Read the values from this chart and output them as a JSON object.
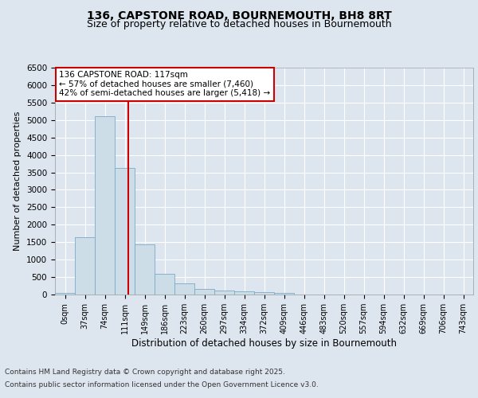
{
  "title": "136, CAPSTONE ROAD, BOURNEMOUTH, BH8 8RT",
  "subtitle": "Size of property relative to detached houses in Bournemouth",
  "xlabel": "Distribution of detached houses by size in Bournemouth",
  "ylabel": "Number of detached properties",
  "bin_labels": [
    "0sqm",
    "37sqm",
    "74sqm",
    "111sqm",
    "149sqm",
    "186sqm",
    "223sqm",
    "260sqm",
    "297sqm",
    "334sqm",
    "372sqm",
    "409sqm",
    "446sqm",
    "483sqm",
    "520sqm",
    "557sqm",
    "594sqm",
    "632sqm",
    "669sqm",
    "706sqm",
    "743sqm"
  ],
  "bar_heights": [
    50,
    1650,
    5100,
    3620,
    1430,
    600,
    320,
    160,
    110,
    80,
    60,
    50,
    10,
    5,
    3,
    2,
    1,
    1,
    0,
    0,
    0
  ],
  "bar_color": "#ccdde8",
  "bar_edgecolor": "#7aaac8",
  "vline_x": 3.16,
  "vline_color": "#cc0000",
  "annotation_text": "136 CAPSTONE ROAD: 117sqm\n← 57% of detached houses are smaller (7,460)\n42% of semi-detached houses are larger (5,418) →",
  "annotation_box_facecolor": "#ffffff",
  "annotation_box_edgecolor": "#cc0000",
  "ylim": [
    0,
    6500
  ],
  "yticks": [
    0,
    500,
    1000,
    1500,
    2000,
    2500,
    3000,
    3500,
    4000,
    4500,
    5000,
    5500,
    6000,
    6500
  ],
  "background_color": "#dde6ef",
  "plot_background": "#dde6ef",
  "footer_line1": "Contains HM Land Registry data © Crown copyright and database right 2025.",
  "footer_line2": "Contains public sector information licensed under the Open Government Licence v3.0.",
  "title_fontsize": 10,
  "subtitle_fontsize": 9,
  "ylabel_fontsize": 8,
  "xlabel_fontsize": 8.5,
  "tick_fontsize": 7.5,
  "xtick_fontsize": 7,
  "ann_fontsize": 7.5,
  "footer_fontsize": 6.5
}
